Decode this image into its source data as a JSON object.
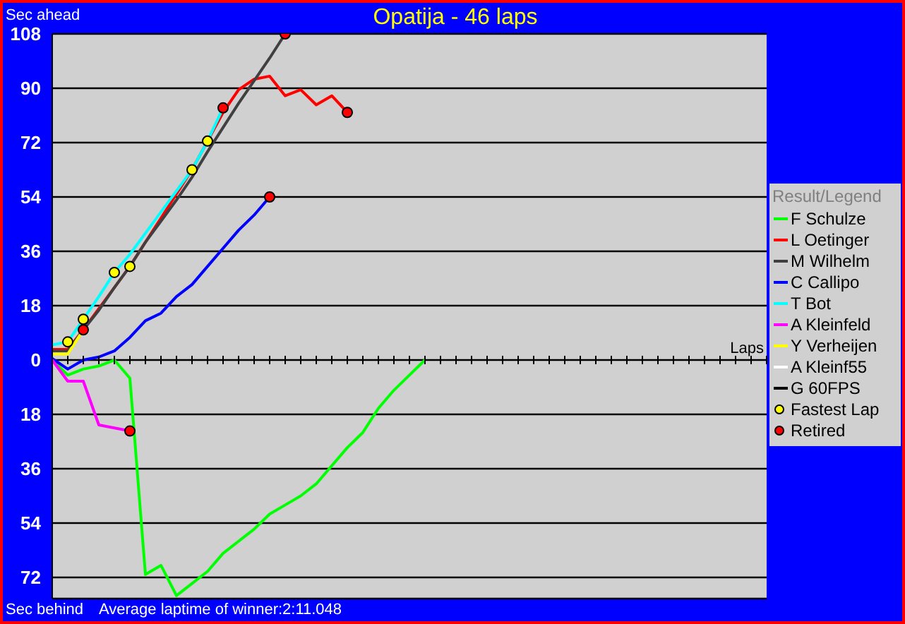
{
  "chart_data": {
    "type": "line",
    "title": "Opatija - 46 laps",
    "ylabel": "Sec ahead",
    "xlabel": "Laps",
    "annotations": [
      "Sec behind",
      "Average laptime of winner:2:11.048"
    ],
    "legend_title": "Result/Legend",
    "legend": "right",
    "grid": "y",
    "tick_labels": "y",
    "categories": [
      null,
      null,
      null,
      null,
      null,
      null,
      null,
      null,
      null,
      null,
      null,
      null,
      null,
      null,
      null,
      null,
      null,
      null,
      null,
      null,
      null,
      null,
      null,
      null,
      null,
      null,
      null,
      null,
      null,
      null,
      null,
      null,
      null,
      null,
      null,
      null,
      null,
      null,
      null,
      null,
      null,
      null,
      null,
      null,
      null,
      null,
      null
    ],
    "ylim": [
      -79,
      108
    ],
    "yticks": [
      {
        "value": -72,
        "label": "72"
      },
      {
        "value": -54,
        "label": "54"
      },
      {
        "value": -36,
        "label": "36"
      },
      {
        "value": -18,
        "label": "18"
      },
      0,
      18,
      36,
      54,
      72,
      90,
      108
    ],
    "series": [
      {
        "name": "F Schulze",
        "color": "#00ff00",
        "values": [
          0,
          -5,
          -3,
          -2,
          0,
          -6,
          -71,
          -68,
          -78,
          -74,
          -70,
          -64,
          -60,
          -56,
          -51,
          -48,
          -45,
          -41,
          -35,
          -29,
          -24,
          -16,
          -10,
          -5,
          0,
          null,
          null,
          null,
          null,
          null,
          null,
          null,
          null,
          null,
          null,
          null,
          null,
          null,
          null,
          null,
          null,
          null,
          null,
          null,
          null,
          null,
          null
        ]
      },
      {
        "name": "L Oetinger",
        "color": "#ff0000",
        "values": [
          3.5,
          3.5,
          10,
          17,
          24,
          31,
          39,
          47,
          55,
          63,
          72.5,
          82,
          89.5,
          93,
          94,
          87.5,
          89.5,
          84.5,
          87.5,
          82,
          null,
          null,
          null,
          null,
          null,
          null,
          null,
          null,
          null,
          null,
          null,
          null,
          null,
          null,
          null,
          null,
          null,
          null,
          null,
          null,
          null,
          null,
          null,
          null,
          null,
          null,
          null
        ]
      },
      {
        "name": "M Wilhelm",
        "color": "#404040",
        "values": [
          3,
          3,
          10,
          16.5,
          24,
          31,
          39,
          46,
          53,
          60.5,
          69,
          77,
          85,
          92.5,
          100,
          108,
          null,
          null,
          null,
          null,
          null,
          null,
          null,
          null,
          null,
          null,
          null,
          null,
          null,
          null,
          null,
          null,
          null,
          null,
          null,
          null,
          null,
          null,
          null,
          null,
          null,
          null,
          null,
          null,
          null,
          null,
          null
        ]
      },
      {
        "name": "C Callipo",
        "color": "#0000ff",
        "values": [
          0.5,
          -3,
          0,
          1,
          3,
          7.5,
          13,
          15.5,
          21,
          25,
          31,
          37,
          43,
          48,
          54,
          null,
          null,
          null,
          null,
          null,
          null,
          null,
          null,
          null,
          null,
          null,
          null,
          null,
          null,
          null,
          null,
          null,
          null,
          null,
          null,
          null,
          null,
          null,
          null,
          null,
          null,
          null,
          null,
          null,
          null,
          null,
          null
        ]
      },
      {
        "name": "T Bot",
        "color": "#00ffff",
        "values": [
          5,
          6,
          13.5,
          21,
          29,
          35,
          42,
          49,
          56,
          63,
          72.5,
          83.5,
          null,
          null,
          null,
          null,
          null,
          null,
          null,
          null,
          null,
          null,
          null,
          null,
          null,
          null,
          null,
          null,
          null,
          null,
          null,
          null,
          null,
          null,
          null,
          null,
          null,
          null,
          null,
          null,
          null,
          null,
          null,
          null,
          null,
          null,
          null
        ]
      },
      {
        "name": "A Kleinfeld",
        "color": "#ff00ff",
        "values": [
          0,
          -7,
          -7,
          -21.5,
          -22.5,
          -23.5,
          null,
          null,
          null,
          null,
          null,
          null,
          null,
          null,
          null,
          null,
          null,
          null,
          null,
          null,
          null,
          null,
          null,
          null,
          null,
          null,
          null,
          null,
          null,
          null,
          null,
          null,
          null,
          null,
          null,
          null,
          null,
          null,
          null,
          null,
          null,
          null,
          null,
          null,
          null,
          null,
          null
        ]
      },
      {
        "name": "Y Verheijen",
        "color": "#ffff00",
        "values": [
          2,
          2,
          10,
          null,
          null,
          null,
          null,
          null,
          null,
          null,
          null,
          null,
          null,
          null,
          null,
          null,
          null,
          null,
          null,
          null,
          null,
          null,
          null,
          null,
          null,
          null,
          null,
          null,
          null,
          null,
          null,
          null,
          null,
          null,
          null,
          null,
          null,
          null,
          null,
          null,
          null,
          null,
          null,
          null,
          null,
          null,
          null
        ]
      },
      {
        "name": "A Kleinf55",
        "color": "#ffffff",
        "values": [
          null,
          null,
          null,
          null,
          null,
          null,
          null,
          null,
          null,
          null,
          null,
          null,
          null,
          null,
          null,
          null,
          null,
          null,
          null,
          null,
          null,
          null,
          null,
          null,
          null,
          null,
          null,
          null,
          null,
          null,
          null,
          null,
          null,
          null,
          null,
          null,
          null,
          null,
          null,
          null,
          null,
          null,
          null,
          null,
          null,
          null,
          null
        ]
      },
      {
        "name": "G 60FPS",
        "color": "#000000",
        "values": [
          null,
          null,
          null,
          null,
          null,
          null,
          null,
          null,
          null,
          null,
          null,
          null,
          null,
          null,
          null,
          null,
          null,
          null,
          null,
          null,
          null,
          null,
          null,
          null,
          null,
          null,
          null,
          null,
          null,
          null,
          null,
          null,
          null,
          null,
          null,
          null,
          null,
          null,
          null,
          null,
          null,
          null,
          null,
          null,
          null,
          null,
          null
        ]
      },
      {
        "name": "Fastest Lap",
        "type": "scatter",
        "marker": "circle",
        "color": "#ffff00",
        "values": [
          null,
          6,
          13.5,
          null,
          29,
          31,
          null,
          null,
          null,
          63,
          72.5,
          null,
          null,
          null,
          null,
          null,
          null,
          null,
          null,
          null,
          null,
          null,
          null,
          null,
          null,
          null,
          null,
          null,
          null,
          null,
          null,
          null,
          null,
          null,
          null,
          null,
          null,
          null,
          null,
          null,
          null,
          null,
          null,
          null,
          null,
          null,
          null
        ]
      },
      {
        "name": "Retired",
        "type": "scatter",
        "marker": "circle",
        "color": "#ff0000",
        "values": [
          null,
          null,
          10,
          null,
          null,
          -23.5,
          null,
          null,
          null,
          null,
          null,
          83.5,
          null,
          null,
          54,
          108,
          null,
          null,
          null,
          82,
          null,
          null,
          null,
          null,
          null,
          null,
          null,
          null,
          null,
          null,
          null,
          null,
          null,
          null,
          null,
          null,
          null,
          null,
          null,
          null,
          null,
          null,
          null,
          null,
          null,
          null,
          null
        ]
      }
    ]
  }
}
